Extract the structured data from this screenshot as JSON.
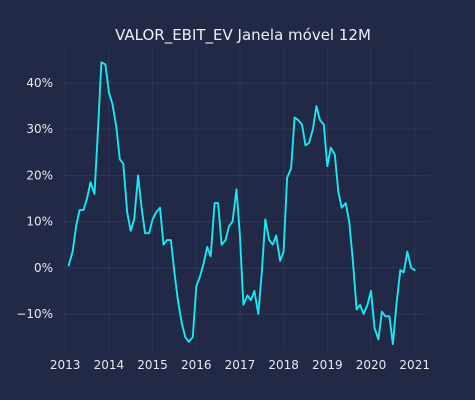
{
  "chart_data": {
    "type": "line",
    "title": "VALOR_EBIT_EV Janela móvel 12M",
    "xlabel": "",
    "ylabel": "",
    "xlim": [
      2012.95,
      2021.35
    ],
    "ylim": [
      -0.18,
      0.48
    ],
    "x_ticks": [
      {
        "value": 2013,
        "label": "2013"
      },
      {
        "value": 2014,
        "label": "2014"
      },
      {
        "value": 2015,
        "label": "2015"
      },
      {
        "value": 2016,
        "label": "2016"
      },
      {
        "value": 2017,
        "label": "2017"
      },
      {
        "value": 2018,
        "label": "2018"
      },
      {
        "value": 2019,
        "label": "2019"
      },
      {
        "value": 2020,
        "label": "2020"
      },
      {
        "value": 2021,
        "label": "2021"
      }
    ],
    "y_ticks": [
      {
        "value": -0.1,
        "label": "−10%"
      },
      {
        "value": 0.0,
        "label": "0%"
      },
      {
        "value": 0.1,
        "label": "10%"
      },
      {
        "value": 0.2,
        "label": "20%"
      },
      {
        "value": 0.3,
        "label": "30%"
      },
      {
        "value": 0.4,
        "label": "40%"
      }
    ],
    "grid": true,
    "legend": "none",
    "colors": {
      "background": "#212946",
      "grid": "#2f3a5c",
      "line": "#18e8f0",
      "text": "#e6e9f0"
    },
    "series": [
      {
        "x": [
          2013.08,
          2013.17,
          2013.25,
          2013.33,
          2013.42,
          2013.5,
          2013.58,
          2013.67,
          2013.75,
          2013.83,
          2013.92,
          2014.0,
          2014.08,
          2014.17,
          2014.25,
          2014.33,
          2014.42,
          2014.5,
          2014.58,
          2014.67,
          2014.75,
          2014.83,
          2014.92,
          2015.0,
          2015.08,
          2015.17,
          2015.25,
          2015.33,
          2015.42,
          2015.5,
          2015.58,
          2015.67,
          2015.75,
          2015.83,
          2015.92,
          2016.0,
          2016.08,
          2016.17,
          2016.25,
          2016.33,
          2016.42,
          2016.5,
          2016.58,
          2016.67,
          2016.75,
          2016.83,
          2016.92,
          2017.0,
          2017.08,
          2017.17,
          2017.25,
          2017.33,
          2017.42,
          2017.5,
          2017.58,
          2017.67,
          2017.75,
          2017.83,
          2017.92,
          2018.0,
          2018.08,
          2018.17,
          2018.25,
          2018.33,
          2018.42,
          2018.5,
          2018.58,
          2018.67,
          2018.75,
          2018.83,
          2018.92,
          2019.0,
          2019.08,
          2019.17,
          2019.25,
          2019.33,
          2019.42,
          2019.5,
          2019.58,
          2019.67,
          2019.75,
          2019.83,
          2019.92,
          2020.0,
          2020.08,
          2020.17,
          2020.25,
          2020.33,
          2020.42,
          2020.5,
          2020.58,
          2020.67,
          2020.75,
          2020.83,
          2020.92,
          2021.0
        ],
        "y": [
          0.005,
          0.035,
          0.09,
          0.125,
          0.125,
          0.15,
          0.185,
          0.16,
          0.3,
          0.445,
          0.44,
          0.38,
          0.355,
          0.305,
          0.235,
          0.225,
          0.12,
          0.08,
          0.105,
          0.2,
          0.13,
          0.075,
          0.075,
          0.105,
          0.12,
          0.13,
          0.05,
          0.06,
          0.06,
          -0.01,
          -0.07,
          -0.12,
          -0.15,
          -0.16,
          -0.15,
          -0.04,
          -0.02,
          0.01,
          0.045,
          0.025,
          0.14,
          0.14,
          0.05,
          0.06,
          0.09,
          0.1,
          0.17,
          0.07,
          -0.08,
          -0.06,
          -0.07,
          -0.05,
          -0.1,
          -0.01,
          0.105,
          0.06,
          0.05,
          0.07,
          0.015,
          0.035,
          0.195,
          0.215,
          0.325,
          0.32,
          0.31,
          0.265,
          0.27,
          0.3,
          0.35,
          0.32,
          0.31,
          0.22,
          0.26,
          0.245,
          0.165,
          0.13,
          0.14,
          0.1,
          0.02,
          -0.09,
          -0.08,
          -0.1,
          -0.08,
          -0.05,
          -0.13,
          -0.155,
          -0.095,
          -0.105,
          -0.105,
          -0.165,
          -0.08,
          -0.005,
          -0.01,
          0.035,
          0.0,
          -0.005
        ]
      }
    ]
  }
}
